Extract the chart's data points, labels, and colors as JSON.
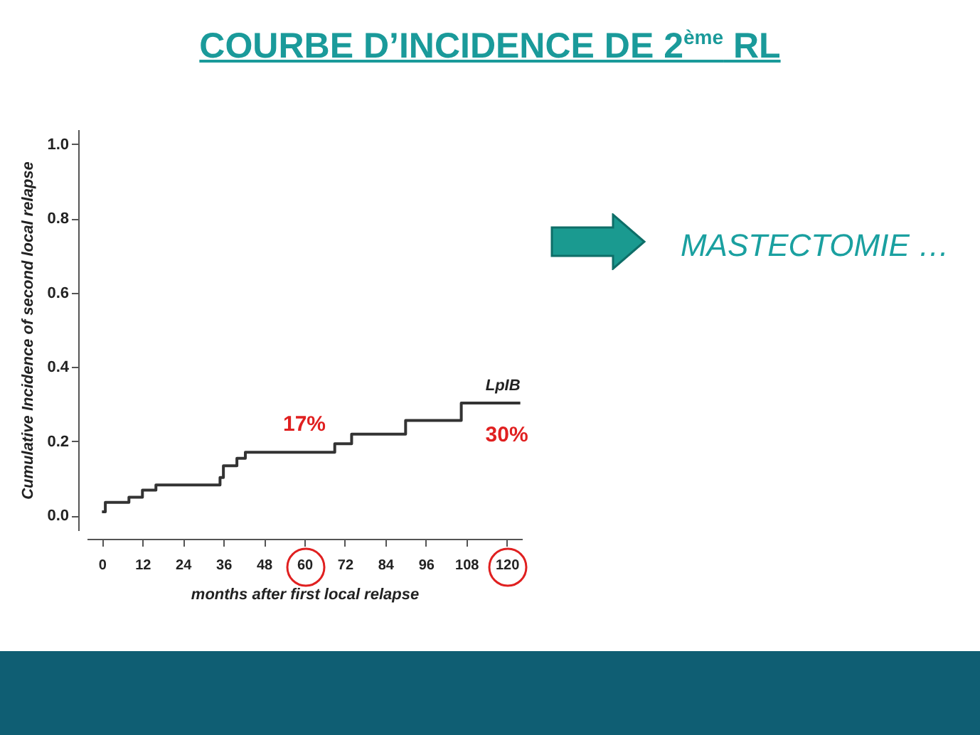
{
  "chart_data": {
    "type": "step",
    "title": "COURBE D’INCIDENCE DE 2$^{ème}$ RL",
    "xlabel": "months after first local relapse",
    "ylabel": "Cumulative Incidence of second local relapse",
    "x": [
      0,
      1,
      8,
      12,
      16,
      35,
      36,
      40,
      42.5,
      69,
      74,
      90,
      106.5,
      124
    ],
    "series": [
      {
        "name": "LpIB",
        "color": "#333333",
        "values": [
          0.01,
          0.035,
          0.049,
          0.068,
          0.082,
          0.102,
          0.134,
          0.154,
          0.17,
          0.193,
          0.219,
          0.256,
          0.303,
          0.303
        ]
      }
    ],
    "xlim": [
      -4.5,
      124.5
    ],
    "ylim": [
      -0.04,
      1.04
    ],
    "xticks": [
      0,
      12,
      24,
      36,
      48,
      60,
      72,
      84,
      96,
      108,
      120
    ],
    "yticks": [
      {
        "value": 0,
        "label": "0.0"
      },
      0.2,
      0.4,
      0.6,
      0.8,
      {
        "value": 1,
        "label": "1.0"
      }
    ],
    "annotations": [
      {
        "text": "17%",
        "x": 60,
        "y": 0.17
      },
      {
        "text": "30%",
        "x": 120,
        "y": 0.303
      },
      "MASTECTOMIE …"
    ],
    "grid": false,
    "legend": false,
    "line_style": "solid",
    "marker": "none"
  }
}
